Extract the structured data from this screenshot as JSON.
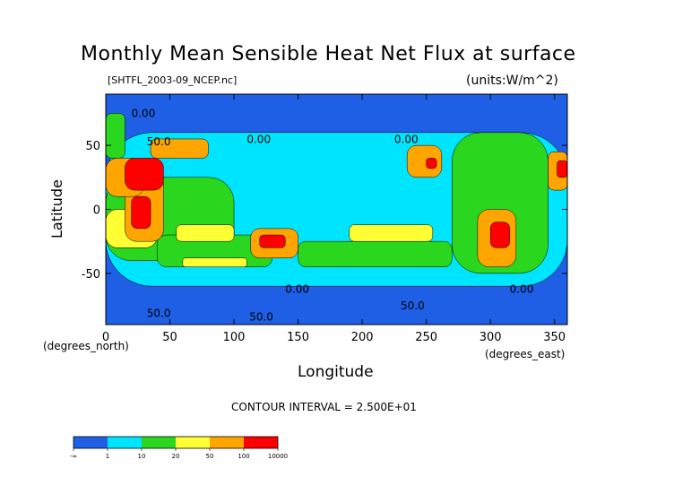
{
  "chart_data": {
    "type": "heatmap",
    "title": "Monthly Mean Sensible Heat Net Flux at surface",
    "subtitle": "[SHTFL_2003-09_NCEP.nc]",
    "units": "(units:W/m^2)",
    "xlabel": "Longitude",
    "ylabel": "Latitude",
    "x_unit_label": "(degrees_east)",
    "y_unit_label": "(degrees_north)",
    "xlim": [
      0,
      360
    ],
    "ylim": [
      -90,
      90
    ],
    "x_ticks": [
      0,
      50,
      100,
      150,
      200,
      250,
      300,
      350
    ],
    "y_ticks": [
      -50,
      0,
      50
    ],
    "contour_interval_text": "CONTOUR INTERVAL = 2.500E+01",
    "contour_labels": [
      {
        "text": "0.00",
        "x": 20,
        "y": 72
      },
      {
        "text": "50.0",
        "x": 32,
        "y": 50
      },
      {
        "text": "0.00",
        "x": 110,
        "y": 52
      },
      {
        "text": "0.00",
        "x": 225,
        "y": 52
      },
      {
        "text": "0.00",
        "x": 140,
        "y": -65
      },
      {
        "text": "0.00",
        "x": 315,
        "y": -65
      },
      {
        "text": "50.0",
        "x": 32,
        "y": -84
      },
      {
        "text": "50.0",
        "x": 112,
        "y": -87
      },
      {
        "text": "50.0",
        "x": 230,
        "y": -78
      }
    ],
    "colorbar": {
      "levels": [
        "-∞",
        "1",
        "10",
        "20",
        "50",
        "100",
        "10000"
      ],
      "colors": [
        "#1e5fe6",
        "#00e5ff",
        "#2bd61f",
        "#ffff33",
        "#ffa500",
        "#ff0000"
      ]
    },
    "field_regions": [
      {
        "level": 1,
        "lon": [
          0,
          360
        ],
        "lat": [
          -60,
          60
        ]
      },
      {
        "level": 2,
        "lon": [
          0,
          100
        ],
        "lat": [
          -40,
          25
        ]
      },
      {
        "level": 2,
        "lon": [
          40,
          130
        ],
        "lat": [
          -45,
          -20
        ]
      },
      {
        "level": 2,
        "lon": [
          150,
          270
        ],
        "lat": [
          -45,
          -25
        ]
      },
      {
        "level": 2,
        "lon": [
          0,
          15
        ],
        "lat": [
          40,
          75
        ]
      },
      {
        "level": 2,
        "lon": [
          270,
          345
        ],
        "lat": [
          -50,
          60
        ]
      },
      {
        "level": 3,
        "lon": [
          0,
          40
        ],
        "lat": [
          -30,
          0
        ]
      },
      {
        "level": 3,
        "lon": [
          55,
          100
        ],
        "lat": [
          -25,
          -12
        ]
      },
      {
        "level": 3,
        "lon": [
          190,
          255
        ],
        "lat": [
          -25,
          -12
        ]
      },
      {
        "level": 3,
        "lon": [
          60,
          110
        ],
        "lat": [
          -45,
          -38
        ]
      },
      {
        "level": 4,
        "lon": [
          15,
          45
        ],
        "lat": [
          -25,
          30
        ]
      },
      {
        "level": 4,
        "lon": [
          0,
          30
        ],
        "lat": [
          10,
          40
        ]
      },
      {
        "level": 4,
        "lon": [
          235,
          262
        ],
        "lat": [
          25,
          50
        ]
      },
      {
        "level": 4,
        "lon": [
          113,
          150
        ],
        "lat": [
          -38,
          -15
        ]
      },
      {
        "level": 4,
        "lon": [
          290,
          320
        ],
        "lat": [
          -45,
          0
        ]
      },
      {
        "level": 4,
        "lon": [
          345,
          360
        ],
        "lat": [
          15,
          45
        ]
      },
      {
        "level": 4,
        "lon": [
          35,
          80
        ],
        "lat": [
          40,
          55
        ]
      },
      {
        "level": 5,
        "lon": [
          20,
          35
        ],
        "lat": [
          -15,
          10
        ]
      },
      {
        "level": 5,
        "lon": [
          15,
          45
        ],
        "lat": [
          15,
          40
        ]
      },
      {
        "level": 5,
        "lon": [
          120,
          140
        ],
        "lat": [
          -30,
          -20
        ]
      },
      {
        "level": 5,
        "lon": [
          300,
          315
        ],
        "lat": [
          -30,
          -10
        ]
      },
      {
        "level": 5,
        "lon": [
          250,
          258
        ],
        "lat": [
          32,
          40
        ]
      },
      {
        "level": 5,
        "lon": [
          352,
          360
        ],
        "lat": [
          25,
          38
        ]
      }
    ]
  }
}
